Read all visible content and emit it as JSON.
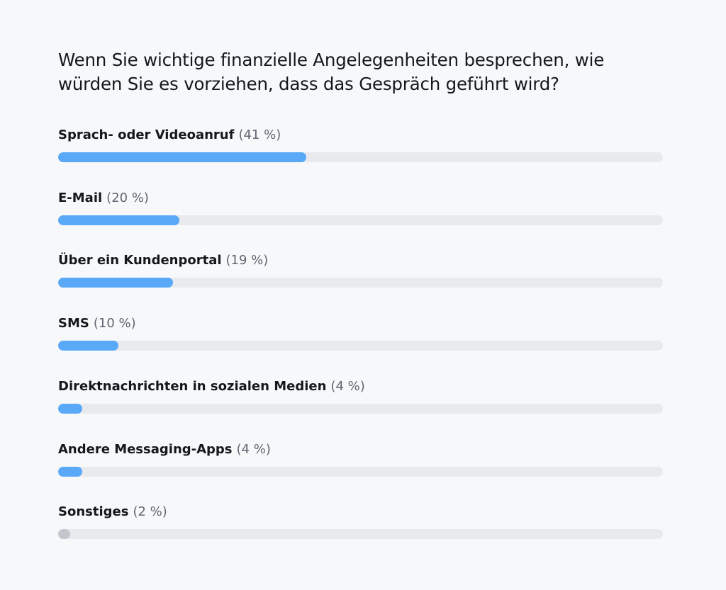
{
  "poll": {
    "question": "Wenn Sie wichtige finanzielle Angelegenheiten besprechen, wie würden Sie es vorziehen, dass das Gespräch geführt wird?"
  },
  "colors": {
    "bar_fill": "#5aa8f8",
    "bar_fill_last": "#c3c7cd",
    "track": "#e8eaee"
  },
  "chart_data": {
    "type": "bar",
    "orientation": "horizontal",
    "title": "Wenn Sie wichtige finanzielle Angelegenheiten besprechen, wie würden Sie es vorziehen, dass das Gespräch geführt wird?",
    "categories": [
      "Sprach- oder Videoanruf",
      "E-Mail",
      "Über ein Kundenportal",
      "SMS",
      "Direktnachrichten in sozialen Medien",
      "Andere Messaging-Apps",
      "Sonstiges"
    ],
    "values": [
      41,
      20,
      19,
      10,
      4,
      4,
      2
    ],
    "value_labels": [
      "(41 %)",
      "(20 %)",
      "(19 %)",
      "(10 %)",
      "(4 %)",
      "(4 %)",
      "(2 %)"
    ],
    "xlim": [
      0,
      100
    ],
    "grid": false,
    "legend": false
  }
}
